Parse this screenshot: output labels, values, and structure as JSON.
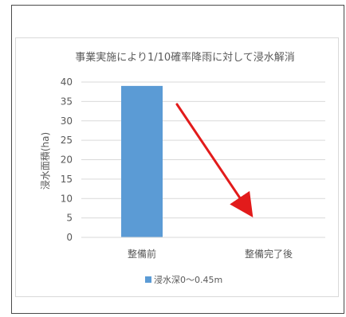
{
  "colors": {
    "bar": "#5b9bd5",
    "grid": "#d9d9d9",
    "arrow": "#e21b1b",
    "text": "#595959"
  },
  "chart_data": {
    "type": "bar",
    "title": "事業実施により1/10確率降雨に対して浸水解消",
    "ylabel": "浸水面積(ha)",
    "xlabel": "",
    "categories": [
      "整備前",
      "整備完了後"
    ],
    "series": [
      {
        "name": "浸水深0～0.45m",
        "values": [
          39,
          0
        ]
      }
    ],
    "ylim": [
      0,
      40
    ],
    "yticks": [
      0,
      5,
      10,
      15,
      20,
      25,
      30,
      35,
      40
    ],
    "grid": true,
    "legend_position": "bottom",
    "annotation": {
      "type": "arrow",
      "direction": "downward-right",
      "color": "#e21b1b"
    }
  }
}
